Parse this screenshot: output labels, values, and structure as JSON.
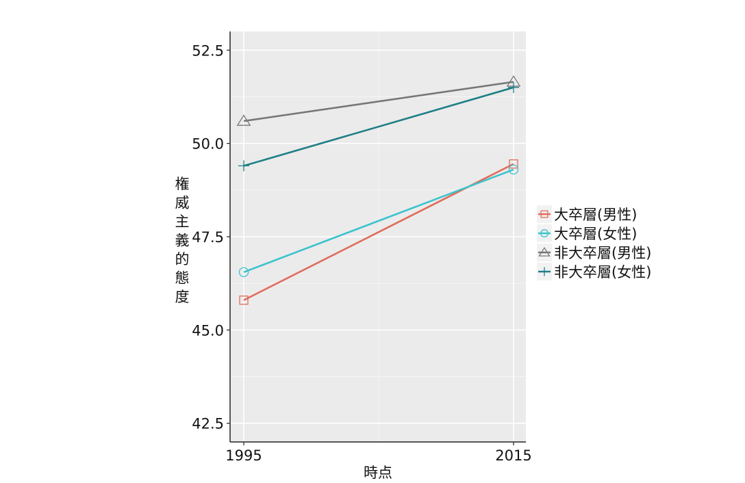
{
  "chart_data": {
    "type": "line",
    "x": [
      "1995",
      "2015"
    ],
    "xlabel": "時点",
    "ylabel": "権威主義的態度",
    "ylim": [
      42.0,
      53.0
    ],
    "yticks": [
      "42.5",
      "45.0",
      "47.5",
      "50.0",
      "52.5"
    ],
    "ytick_values": [
      42.5,
      45.0,
      47.5,
      50.0,
      52.5
    ],
    "grid": true,
    "legend_position": "right",
    "series": [
      {
        "name": "大卒層(男性)",
        "values": [
          45.8,
          49.45
        ],
        "color": "#e06c5a",
        "marker": "square"
      },
      {
        "name": "大卒層(女性)",
        "values": [
          46.55,
          49.3
        ],
        "color": "#3cc3cc",
        "marker": "circle"
      },
      {
        "name": "非大卒層(男性)",
        "values": [
          50.6,
          51.65
        ],
        "color": "#777777",
        "marker": "triangle"
      },
      {
        "name": "非大卒層(女性)",
        "values": [
          49.4,
          51.5
        ],
        "color": "#1f7f86",
        "marker": "plus"
      }
    ]
  }
}
